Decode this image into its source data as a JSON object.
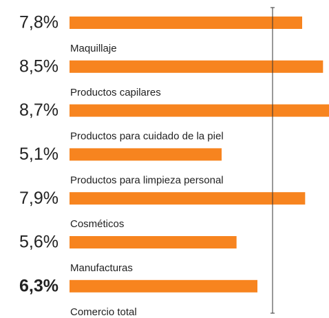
{
  "chart_data": {
    "type": "bar",
    "categories": [
      "Maquillaje",
      "Productos capilares",
      "Productos para cuidado de la piel",
      "Productos para limpieza personal",
      "Cosméticos",
      "Manufacturas",
      "Comercio total"
    ],
    "values": [
      7.8,
      8.5,
      8.7,
      5.1,
      7.9,
      5.6,
      6.3
    ],
    "value_labels": [
      "7,8%",
      "8,5%",
      "8,7%",
      "5,1%",
      "7,9%",
      "5,6%",
      "6,3%"
    ],
    "color": "#f7841f"
  }
}
